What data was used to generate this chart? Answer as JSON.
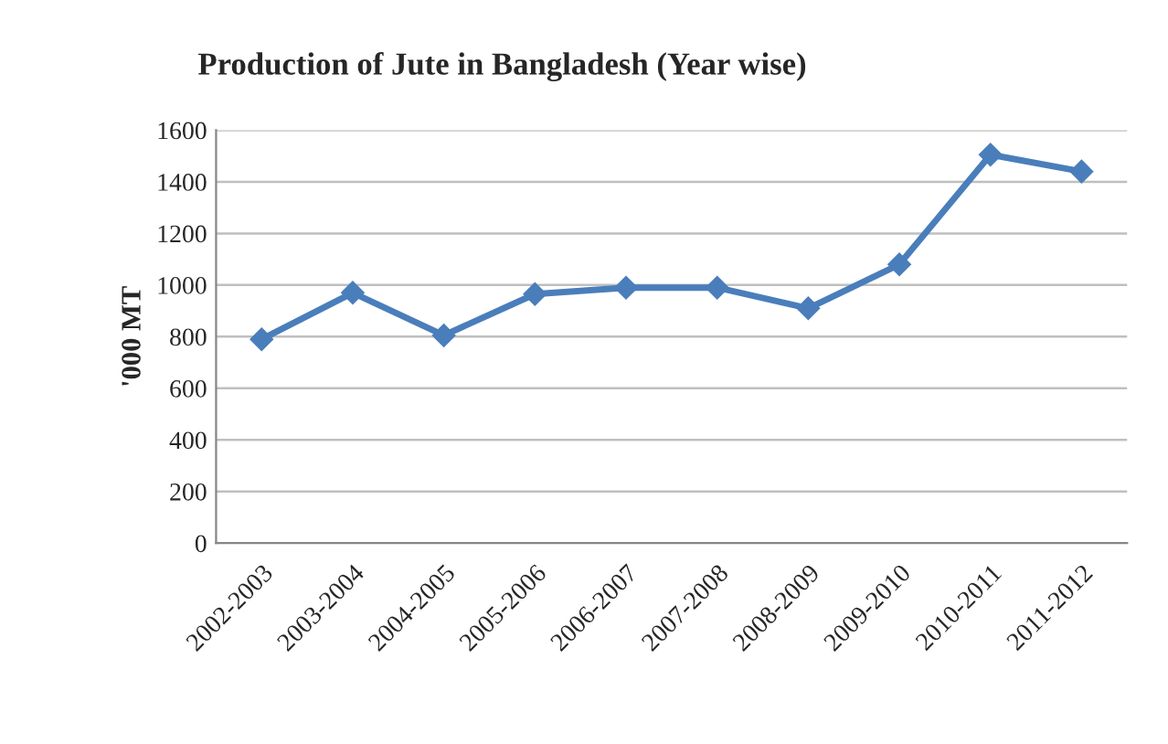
{
  "chart_data": {
    "type": "line",
    "title": "Production of Jute in Bangladesh (Year wise)",
    "ylabel": "'000 MT",
    "categories": [
      "2002-2003",
      "2003-2004",
      "2004-2005",
      "2005-2006",
      "2006-2007",
      "2007-2008",
      "2008-2009",
      "2009-2010",
      "2010-2011",
      "2011-2012"
    ],
    "series": [
      {
        "color": "#4a7ebb",
        "values": [
          790,
          970,
          805,
          965,
          990,
          990,
          910,
          1080,
          1505,
          1440
        ]
      }
    ],
    "ylim": [
      0,
      1600
    ],
    "yticks": [
      0,
      200,
      400,
      600,
      800,
      1000,
      1200,
      1400,
      1600
    ],
    "grid": "y",
    "marker": "diamond",
    "line_style": "solid"
  }
}
